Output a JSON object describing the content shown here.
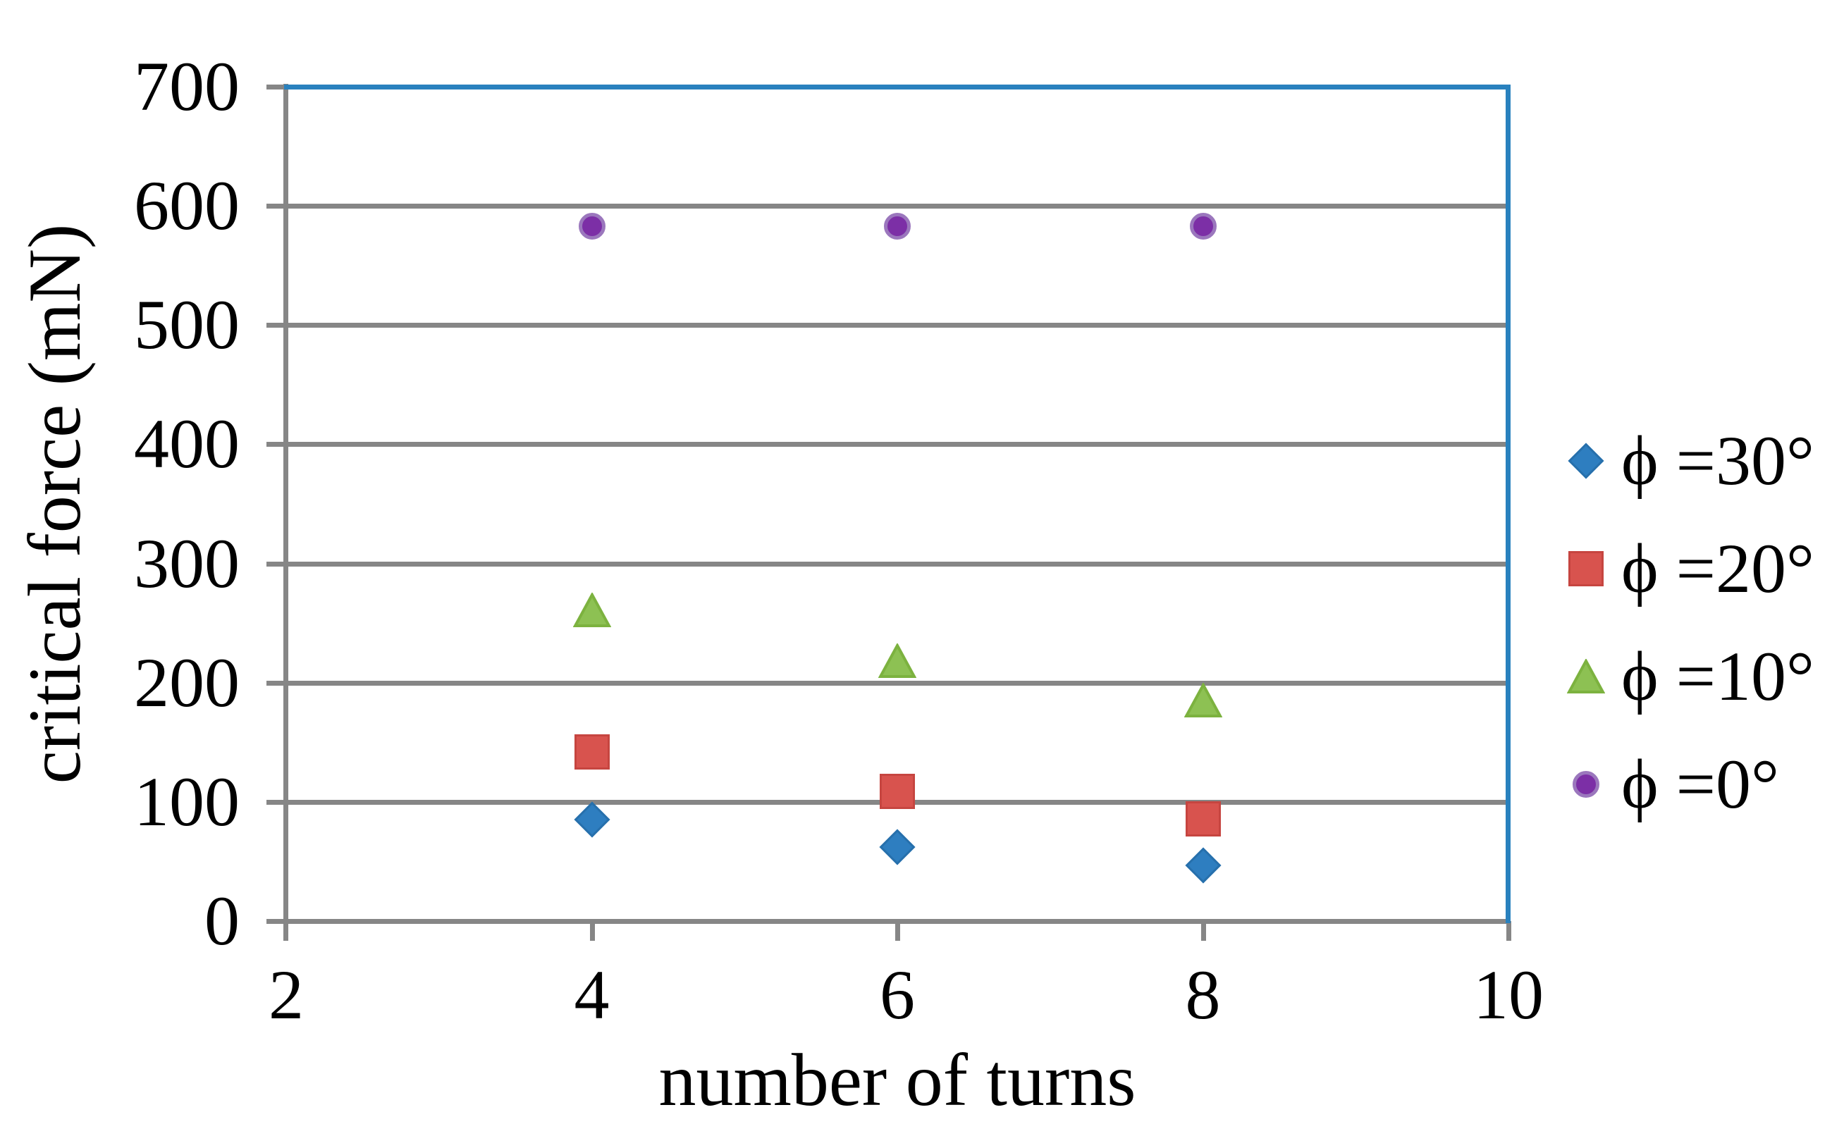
{
  "chart_data": {
    "type": "scatter",
    "title": "",
    "xlabel": "number of turns",
    "ylabel": "critical force (mN)",
    "xlim": [
      2,
      10
    ],
    "ylim": [
      0,
      700
    ],
    "x_ticks": [
      2,
      4,
      6,
      8,
      10
    ],
    "y_ticks": [
      0,
      100,
      200,
      300,
      400,
      500,
      600,
      700
    ],
    "grid": "horizontal-only",
    "legend_position": "right",
    "colors": {
      "axis_gray": "#868686",
      "gridline_gray": "#868686",
      "plot_border_blue": "#2981BE",
      "series_blue": "#2E7EC0",
      "series_red": "#D8534E",
      "series_green": "#8DC153",
      "series_purple": "#7C2FA6"
    },
    "series": [
      {
        "name": "ϕ =30°",
        "marker": "diamond",
        "fill": "#2E7EC0",
        "border": "#2770AC",
        "points": [
          {
            "x": 4,
            "y": 85
          },
          {
            "x": 6,
            "y": 62
          },
          {
            "x": 8,
            "y": 47
          }
        ]
      },
      {
        "name": "ϕ =20°",
        "marker": "square",
        "fill": "#D8534E",
        "border": "#C64540",
        "points": [
          {
            "x": 4,
            "y": 142
          },
          {
            "x": 6,
            "y": 109
          },
          {
            "x": 8,
            "y": 86
          }
        ]
      },
      {
        "name": "ϕ =10°",
        "marker": "triangle",
        "fill": "#8DC153",
        "border": "#7CB23F",
        "points": [
          {
            "x": 4,
            "y": 261
          },
          {
            "x": 6,
            "y": 218
          },
          {
            "x": 8,
            "y": 185
          }
        ]
      },
      {
        "name": "ϕ =0°",
        "marker": "circle",
        "fill": "#7C2FA6",
        "border": "#9B77BD",
        "points": [
          {
            "x": 4,
            "y": 583
          },
          {
            "x": 6,
            "y": 583
          },
          {
            "x": 8,
            "y": 583
          }
        ]
      }
    ]
  }
}
